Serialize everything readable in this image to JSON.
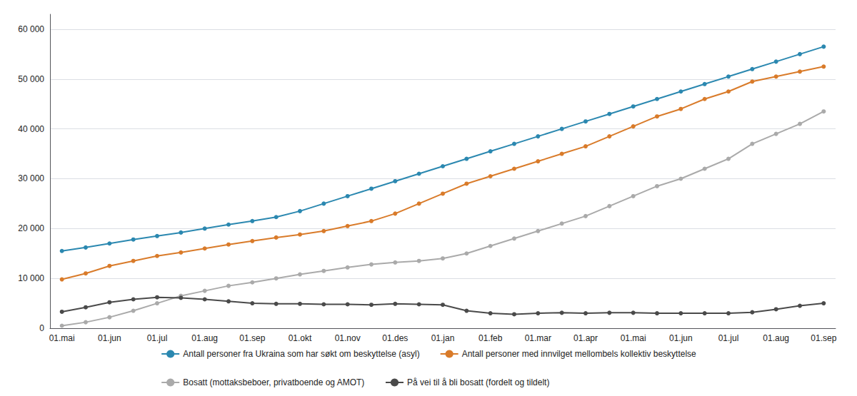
{
  "chart_data": {
    "type": "line",
    "categories": [
      "01.mai",
      null,
      "01.jun",
      null,
      "01.jul",
      null,
      "01.aug",
      null,
      "01.sep",
      null,
      "01.okt",
      null,
      "01.nov",
      null,
      "01.des",
      null,
      "01.jan",
      null,
      "01.feb",
      null,
      "01.mar",
      null,
      "01.apr",
      null,
      "01.mai",
      null,
      "01.jun",
      null,
      "01.jul",
      null,
      "01.aug",
      null,
      "01.sep"
    ],
    "series": [
      {
        "name": "Antall personer fra Ukraina som har søkt om beskyttelse (asyl)",
        "color": "#2B88B0",
        "values": [
          15500,
          16200,
          17000,
          17800,
          18500,
          19200,
          20000,
          20800,
          21500,
          22300,
          23500,
          25000,
          26500,
          28000,
          29500,
          31000,
          32500,
          34000,
          35500,
          37000,
          38500,
          40000,
          41500,
          43000,
          44500,
          46000,
          47500,
          49000,
          50500,
          52000,
          53500,
          55000,
          56500
        ]
      },
      {
        "name": "Antall personer med innvilget mellombels kollektiv beskyttelse",
        "color": "#D97B2A",
        "values": [
          9800,
          11000,
          12500,
          13500,
          14500,
          15200,
          16000,
          16800,
          17500,
          18200,
          18800,
          19500,
          20500,
          21500,
          23000,
          25000,
          27000,
          29000,
          30500,
          32000,
          33500,
          35000,
          36500,
          38500,
          40500,
          42500,
          44000,
          46000,
          47500,
          49500,
          50500,
          51500,
          52500
        ]
      },
      {
        "name": "Bosatt (mottaksbeboer, privatboende og AMOT)",
        "color": "#AAAAAA",
        "values": [
          500,
          1200,
          2200,
          3500,
          5000,
          6500,
          7500,
          8500,
          9200,
          10000,
          10800,
          11500,
          12200,
          12800,
          13200,
          13500,
          14000,
          15000,
          16500,
          18000,
          19500,
          21000,
          22500,
          24500,
          26500,
          28500,
          30000,
          32000,
          34000,
          37000,
          39000,
          41000,
          43500
        ]
      },
      {
        "name": "På vei til å bli bosatt (fordelt og tildelt)",
        "color": "#4A4A4A",
        "values": [
          3300,
          4200,
          5200,
          5800,
          6200,
          6100,
          5800,
          5400,
          5000,
          4900,
          4900,
          4800,
          4800,
          4700,
          4900,
          4800,
          4700,
          3500,
          3000,
          2800,
          3000,
          3100,
          3000,
          3100,
          3100,
          3000,
          3000,
          3000,
          3000,
          3200,
          3800,
          4500,
          5000
        ]
      }
    ],
    "ylim": [
      0,
      63000
    ],
    "yticks": [
      0,
      {
        "value": 10000,
        "label": "10 000"
      },
      {
        "value": 20000,
        "label": "20 000"
      },
      {
        "value": 30000,
        "label": "30 000"
      },
      {
        "value": 40000,
        "label": "40 000"
      },
      {
        "value": 50000,
        "label": "50 000"
      },
      {
        "value": 60000,
        "label": "60 000"
      }
    ],
    "grid": true,
    "legend": "bottom",
    "marker": "circle"
  }
}
